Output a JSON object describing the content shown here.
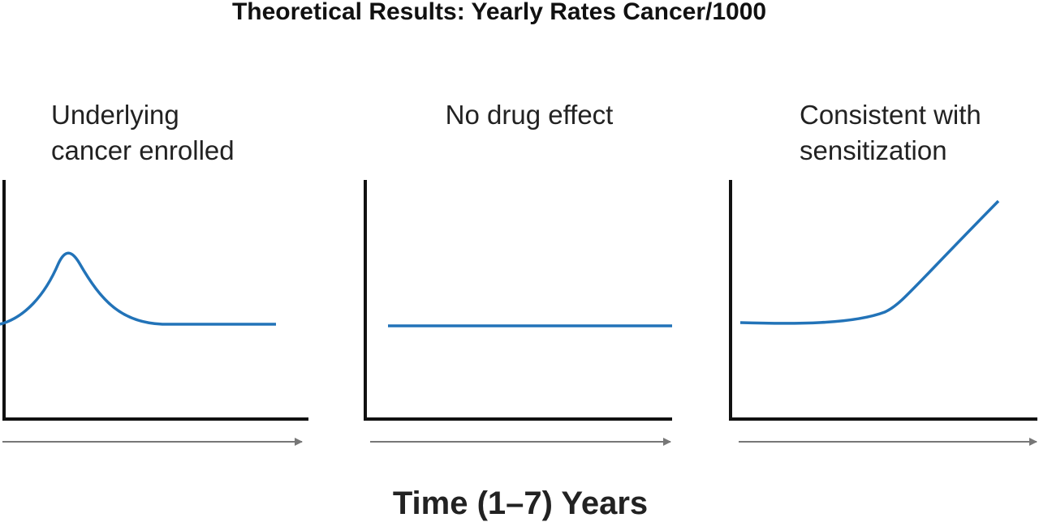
{
  "title": "Theoretical Results: Yearly Rates Cancer/1000",
  "panels": [
    {
      "label": [
        "Underlying",
        "cancer enrolled"
      ]
    },
    {
      "label": [
        "No drug effect"
      ]
    },
    {
      "label": [
        "Consistent with",
        "sensitization"
      ]
    }
  ],
  "x_label": "Time (1–7) Years"
}
